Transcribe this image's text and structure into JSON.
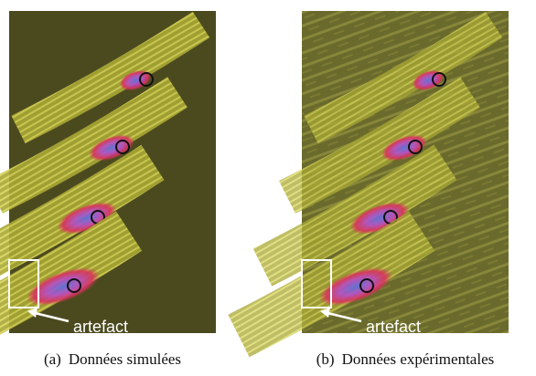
{
  "figure": {
    "panels": [
      {
        "label": "(a)",
        "caption": "Données simulées",
        "annotation": "artefact"
      },
      {
        "label": "(b)",
        "caption": "Données expérimentales",
        "annotation": "artefact"
      }
    ]
  }
}
